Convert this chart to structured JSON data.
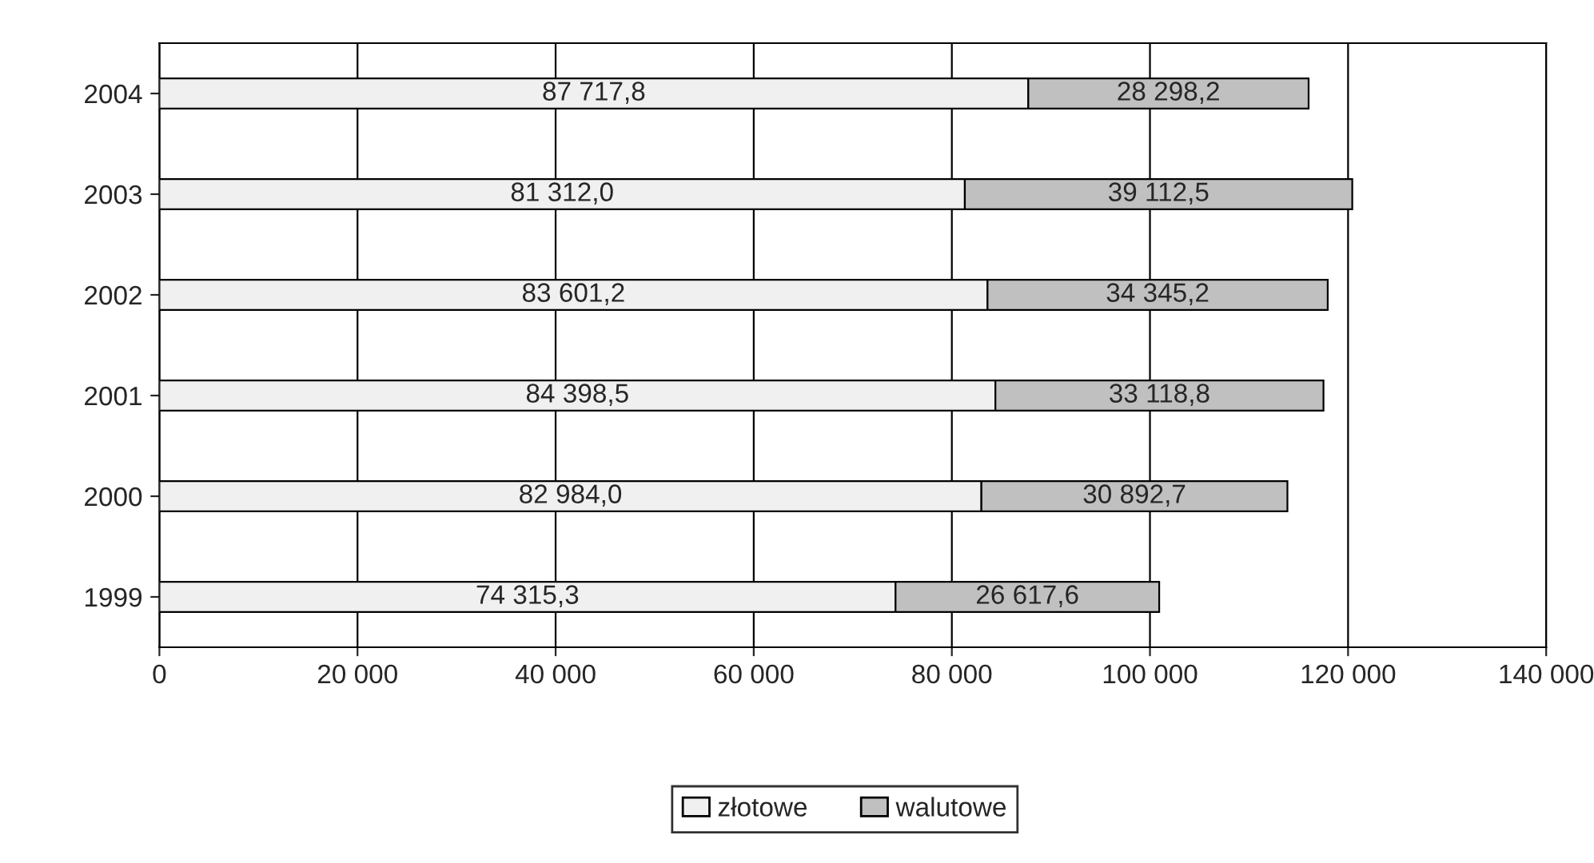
{
  "chart_data": {
    "type": "bar",
    "orientation": "horizontal",
    "stacked": true,
    "categories": [
      "2004",
      "2003",
      "2002",
      "2001",
      "2000",
      "1999"
    ],
    "series": [
      {
        "name": "złotowe",
        "color": "#f0f0f0",
        "values": [
          87717.8,
          81312.0,
          83601.2,
          84398.5,
          82984.0,
          74315.3
        ],
        "value_labels": [
          "87 717,8",
          "81 312,0",
          "83 601,2",
          "84 398,5",
          "82 984,0",
          "74 315,3"
        ]
      },
      {
        "name": "walutowe",
        "color": "#c0c0c0",
        "values": [
          28298.2,
          39112.5,
          34345.2,
          33118.8,
          30892.7,
          26617.6
        ],
        "value_labels": [
          "28 298,2",
          "39 112,5",
          "34 345,2",
          "33 118,8",
          "30 892,7",
          "26 617,6"
        ]
      }
    ],
    "xlim": [
      0,
      140000
    ],
    "xticks": [
      0,
      {
        "value": 20000,
        "label": "20 000"
      },
      {
        "value": 40000,
        "label": "40 000"
      },
      {
        "value": 60000,
        "label": "60 000"
      },
      {
        "value": 80000,
        "label": "80 000"
      },
      {
        "value": 100000,
        "label": "100 000"
      },
      {
        "value": 120000,
        "label": "120 000"
      },
      {
        "value": 140000,
        "label": "140 000"
      }
    ],
    "grid": "x",
    "legend": "bottom"
  }
}
